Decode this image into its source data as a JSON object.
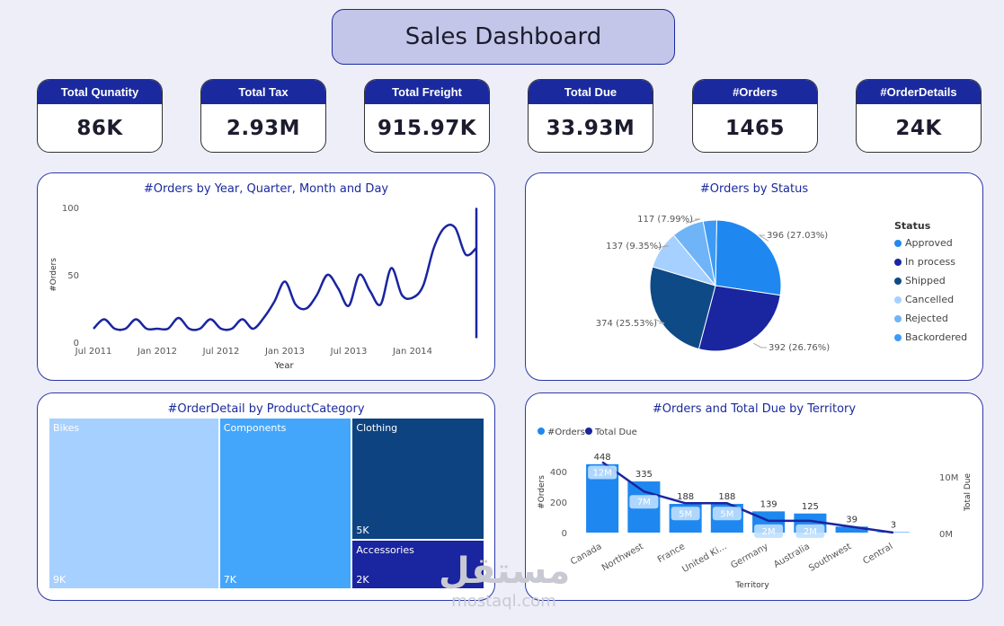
{
  "title": "Sales Dashboard",
  "kpis": [
    {
      "label": "Total Qunatity",
      "value": "86K"
    },
    {
      "label": "Total Tax",
      "value": "2.93M"
    },
    {
      "label": "Total Freight",
      "value": "915.97K"
    },
    {
      "label": "Total Due",
      "value": "33.93M"
    },
    {
      "label": "#Orders",
      "value": "1465"
    },
    {
      "label": "#OrderDetails",
      "value": "24K"
    }
  ],
  "line_panel": {
    "title": "#Orders by Year, Quarter, Month and Day"
  },
  "pie_panel": {
    "title": "#Orders by Status"
  },
  "treemap_panel": {
    "title": "#OrderDetail by ProductCategory"
  },
  "combo_panel": {
    "title": "#Orders and Total Due by Territory"
  },
  "colors": {
    "accent": "#1a2a9e",
    "panel_border": "#2c3aa8",
    "background": "#eeeef8"
  },
  "watermark": {
    "arabic": "مستقل",
    "latin": "mostaql.com"
  },
  "chart_data": [
    {
      "type": "line",
      "title": "#Orders by Year, Quarter, Month and Day",
      "xlabel": "Year",
      "ylabel": "#Orders",
      "ylim": [
        0,
        100
      ],
      "yticks": [
        0,
        50,
        100
      ],
      "xticks": [
        "Jul 2011",
        "Jan 2012",
        "Jul 2012",
        "Jan 2013",
        "Jul 2013",
        "Jan 2014"
      ],
      "x_months": [
        0,
        1,
        2,
        3,
        4,
        5,
        6,
        7,
        8,
        9,
        10,
        11,
        12,
        13,
        14,
        15,
        16,
        17,
        18,
        19,
        20,
        21,
        22,
        23,
        24,
        25,
        26,
        27,
        28,
        29,
        30,
        31,
        32,
        33,
        34,
        35,
        36
      ],
      "values": [
        10,
        17,
        10,
        10,
        17,
        10,
        10,
        10,
        18,
        10,
        10,
        17,
        10,
        10,
        17,
        10,
        18,
        30,
        45,
        28,
        25,
        35,
        50,
        40,
        27,
        50,
        38,
        28,
        55,
        35,
        33,
        42,
        70,
        85,
        85,
        65,
        70
      ]
    },
    {
      "type": "pie",
      "title": "#Orders by Status",
      "legend_title": "Status",
      "legend_position": "right",
      "categories": [
        "Approved",
        "In process",
        "Shipped",
        "Cancelled",
        "Rejected",
        "Backordered"
      ],
      "values": [
        396,
        392,
        374,
        137,
        117,
        49
      ],
      "labels": [
        "396 (27.03%)",
        "392 (26.76%)",
        "374 (25.53%)",
        "137 (9.35%)",
        "117 (7.99%)",
        ""
      ],
      "colors": [
        "#1e88f0",
        "#1a25a0",
        "#0e4a86",
        "#a6d0ff",
        "#6fb4f7",
        "#3d9bf5"
      ]
    },
    {
      "type": "treemap",
      "title": "#OrderDetail by ProductCategory",
      "categories": [
        "Bikes",
        "Components",
        "Clothing",
        "Accessories"
      ],
      "values": [
        9000,
        7000,
        5000,
        2000
      ],
      "labels": [
        "9K",
        "7K",
        "5K",
        "2K"
      ],
      "colors": [
        "#a6d0ff",
        "#44a6fa",
        "#0d4381",
        "#1a25a0"
      ]
    },
    {
      "type": "bar",
      "title": "#Orders and Total Due by Territory",
      "xlabel": "Territory",
      "ylabel": "#Orders",
      "y2label": "Total Due",
      "ylim": [
        0,
        500
      ],
      "yticks": [
        0,
        200,
        400
      ],
      "y2ticks": [
        "0M",
        "10M"
      ],
      "legend": [
        "#Orders",
        "Total Due"
      ],
      "categories": [
        "Canada",
        "Northwest",
        "France",
        "United Ki...",
        "Germany",
        "Australia",
        "Southwest",
        "Central"
      ],
      "series": [
        {
          "name": "#Orders",
          "values": [
            448,
            335,
            188,
            188,
            139,
            125,
            39,
            3
          ],
          "labels": [
            "448",
            "335",
            "188",
            "188",
            "139",
            "125",
            "39",
            "3"
          ]
        },
        {
          "name": "Total Due",
          "values": [
            12,
            7,
            5,
            5,
            2,
            2,
            1,
            0
          ],
          "labels": [
            "12M",
            "7M",
            "5M",
            "5M",
            "2M",
            "2M",
            "",
            ""
          ]
        }
      ],
      "colors": {
        "bars": "#1e88f0",
        "line": "#1a25a0"
      }
    }
  ]
}
